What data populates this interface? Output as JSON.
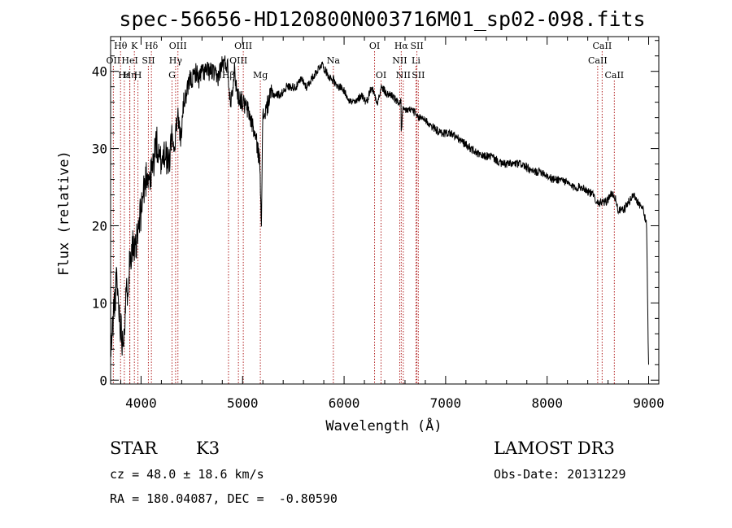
{
  "chart_data": {
    "type": "line",
    "title": "spec-56656-HD120800N003716M01_sp02-098.fits",
    "xlabel": "Wavelength (Å)",
    "ylabel": "Flux (relative)",
    "xlim": [
      3700,
      9100
    ],
    "ylim": [
      -0.5,
      44.5
    ],
    "x_ticks": [
      4000,
      5000,
      6000,
      7000,
      8000,
      9000
    ],
    "y_ticks": [
      0,
      10,
      20,
      30,
      40
    ],
    "grid": false,
    "series": [
      {
        "x": [
          3700,
          3730,
          3760,
          3790,
          3820,
          3850,
          3880,
          3910,
          3940,
          3970,
          4000,
          4030,
          4060,
          4090,
          4120,
          4150,
          4180,
          4210,
          4240,
          4270,
          4300,
          4330,
          4360,
          4390,
          4420,
          4450,
          4480,
          4510,
          4540,
          4570,
          4600,
          4650,
          4700,
          4750,
          4800,
          4850,
          4880,
          4920,
          4950,
          5000,
          5050,
          5100,
          5150,
          5170,
          5185,
          5200,
          5230,
          5280,
          5330,
          5380,
          5430,
          5480,
          5530,
          5580,
          5630,
          5680,
          5730,
          5780,
          5820,
          5870,
          5895,
          5920,
          5970,
          6020,
          6070,
          6120,
          6170,
          6220,
          6270,
          6300,
          6330,
          6370,
          6420,
          6470,
          6520,
          6560,
          6563,
          6580,
          6620,
          6680,
          6720,
          6780,
          6850,
          6950,
          7050,
          7150,
          7250,
          7350,
          7450,
          7550,
          7650,
          7750,
          7850,
          7950,
          8050,
          8150,
          8250,
          8350,
          8450,
          8500,
          8542,
          8580,
          8620,
          8662,
          8700,
          8750,
          8800,
          8850,
          8900,
          8950,
          8980,
          8995,
          9000
        ],
        "values": [
          3,
          9,
          13,
          8,
          5,
          10,
          14,
          18,
          16,
          19,
          22,
          25,
          27,
          26,
          28,
          31,
          28,
          29,
          30,
          27,
          32,
          30,
          35,
          31,
          36,
          37,
          39,
          39,
          40,
          39,
          40,
          40,
          40,
          39,
          41,
          41,
          36,
          40,
          37,
          36,
          35,
          33,
          30,
          28,
          21,
          34,
          35,
          37,
          37,
          37,
          38,
          38,
          38,
          39,
          38,
          39,
          40,
          41,
          40,
          39,
          39,
          38,
          38,
          37,
          36,
          36,
          37,
          36,
          38,
          37,
          36,
          38,
          37,
          37,
          36,
          36,
          32,
          35,
          35,
          35,
          34,
          34,
          33,
          32,
          32,
          31,
          30,
          29,
          29,
          28,
          28,
          28,
          27,
          27,
          26,
          26,
          25,
          25,
          24,
          23,
          23,
          23,
          24,
          24,
          22,
          22,
          23,
          24,
          23,
          22,
          20,
          5,
          2
        ]
      }
    ],
    "spectral_lines": [
      {
        "label": "Hθ",
        "x": 3798,
        "row": 0
      },
      {
        "label": "OII",
        "x": 3727,
        "row": 1
      },
      {
        "label": "Hε",
        "x": 3835,
        "row": 2
      },
      {
        "label": "K",
        "x": 3934,
        "row": 0
      },
      {
        "label": "HeI",
        "x": 3889,
        "row": 1
      },
      {
        "label": "Hη",
        "x": 3889,
        "row": 2
      },
      {
        "label": "Hδ",
        "x": 4102,
        "row": 0
      },
      {
        "label": "SII",
        "x": 4072,
        "row": 1
      },
      {
        "label": "H",
        "x": 3969,
        "row": 2
      },
      {
        "label": "OIII",
        "x": 4363,
        "row": 0
      },
      {
        "label": "Hγ",
        "x": 4340,
        "row": 1
      },
      {
        "label": "G",
        "x": 4305,
        "row": 2
      },
      {
        "label": "OIII",
        "x": 5007,
        "row": 0
      },
      {
        "label": "OIII",
        "x": 4959,
        "row": 1
      },
      {
        "label": "Hβ",
        "x": 4861,
        "row": 2
      },
      {
        "label": "Mg",
        "x": 5175,
        "row": 2
      },
      {
        "label": "Na",
        "x": 5894,
        "row": 1
      },
      {
        "label": "OI",
        "x": 6300,
        "row": 0
      },
      {
        "label": "OI",
        "x": 6364,
        "row": 2
      },
      {
        "label": "Hα",
        "x": 6563,
        "row": 0
      },
      {
        "label": "NII",
        "x": 6548,
        "row": 1
      },
      {
        "label": "NII",
        "x": 6583,
        "row": 2
      },
      {
        "label": "SII",
        "x": 6717,
        "row": 0
      },
      {
        "label": "Li",
        "x": 6708,
        "row": 1
      },
      {
        "label": "SII",
        "x": 6731,
        "row": 2
      },
      {
        "label": "CaII",
        "x": 8542,
        "row": 0
      },
      {
        "label": "CaII",
        "x": 8498,
        "row": 1
      },
      {
        "label": "CaII",
        "x": 8662,
        "row": 2
      }
    ]
  },
  "info": {
    "class": "STAR",
    "subclass": "K3",
    "survey": "LAMOST DR3",
    "cz": "cz = 48.0 ± 18.6 km/s",
    "obs_date": "Obs-Date: 20131229",
    "coords": "RA = 180.04087, DEC =  -0.80590"
  },
  "colors": {
    "spectrum": "#000000",
    "line_marker": "#b22222"
  }
}
